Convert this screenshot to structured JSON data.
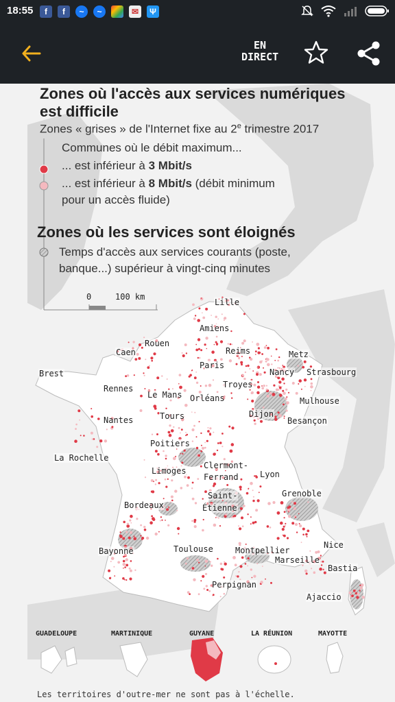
{
  "status_bar": {
    "time": "18:55",
    "notifications": [
      "facebook-icon",
      "facebook-icon",
      "messenger-icon",
      "messenger-icon",
      "photos-icon",
      "mail-icon",
      "usb-icon"
    ],
    "right_icons": [
      "mute-icon",
      "wifi-icon",
      "signal-icon",
      "battery-icon"
    ]
  },
  "app_bar": {
    "back_icon": "arrow-left-icon",
    "live_line1": "EN",
    "live_line2": "DIRECT",
    "star_icon": "star-icon",
    "share_icon": "share-icon"
  },
  "infographic": {
    "title1_line1": "Zones où l'accès aux services numériques",
    "title1_line2": "est difficile",
    "subtitle_prefix": "Zones « grises » de l'Internet fixe au 2",
    "subtitle_sup": "e",
    "subtitle_suffix": " trimestre 2017",
    "legend_intro": "Communes où le débit maximum...",
    "legend_a_prefix": "... est inférieur à ",
    "legend_a_bold": "3 Mbit/s",
    "legend_b_prefix": "... est inférieur à ",
    "legend_b_bold": "8 Mbit/s",
    "legend_b_suffix": " (débit minimum",
    "legend_b_line2": "pour un accès fluide)",
    "title2": "Zones où les services sont éloignés",
    "legend_c_line1": "Temps d'accès aux services courants (poste,",
    "legend_c_line2": "banque...) supérieur à vingt-cinq minutes",
    "scale_zero": "0",
    "scale_max": "100 km",
    "colors": {
      "dark_red": "#e03a47",
      "light_red": "#f4b9bf",
      "hatch": "#9a9a9a"
    },
    "cities": [
      "Lille",
      "Amiens",
      "Rouen",
      "Caen",
      "Reims",
      "Metz",
      "Paris",
      "Brest",
      "Nancy",
      "Strasbourg",
      "Troyes",
      "Rennes",
      "Le Mans",
      "Orléans",
      "Mulhouse",
      "Dijon",
      "Besançon",
      "Tours",
      "Nantes",
      "Poitiers",
      "La Rochelle",
      "Limoges",
      "Clermont-",
      "Ferrand",
      "Lyon",
      "Saint-",
      "Étienne",
      "Grenoble",
      "Bordeaux",
      "Bayonne",
      "Toulouse",
      "Montpellier",
      "Nice",
      "Marseille",
      "Bastia",
      "Perpignan",
      "Ajaccio"
    ],
    "overseas": [
      "GUADELOUPE",
      "MARTINIQUE",
      "GUYANE",
      "LA RÉUNION",
      "MAYOTTE"
    ],
    "footnote": "Les territoires d'outre-mer ne sont pas à l'échelle."
  }
}
